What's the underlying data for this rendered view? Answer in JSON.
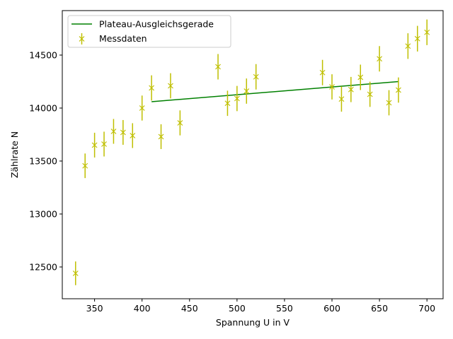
{
  "chart_data": {
    "type": "scatter",
    "title": "",
    "xlabel": "Spannung U in V",
    "ylabel": "Zählrate N",
    "xlim": [
      316,
      717
    ],
    "ylim": [
      12200,
      14920
    ],
    "xticks": [
      350,
      400,
      450,
      500,
      550,
      600,
      650,
      700
    ],
    "yticks": [
      12500,
      13000,
      13500,
      14000,
      14500
    ],
    "grid": false,
    "legend_position": "top-left",
    "colors": {
      "measurements": "#bfbf00",
      "fit": "#008000"
    },
    "series": [
      {
        "name": "Messdaten",
        "kind": "errorbar",
        "marker": "x",
        "x": [
          330,
          340,
          350,
          360,
          370,
          380,
          390,
          400,
          410,
          420,
          430,
          440,
          480,
          490,
          500,
          510,
          520,
          590,
          600,
          610,
          620,
          630,
          640,
          650,
          660,
          670,
          680,
          690,
          700
        ],
        "y": [
          12440,
          13455,
          13650,
          13660,
          13780,
          13770,
          13740,
          14000,
          14190,
          13730,
          14210,
          13860,
          14390,
          14045,
          14090,
          14160,
          14295,
          14335,
          14200,
          14085,
          14175,
          14290,
          14130,
          14465,
          14050,
          14170,
          14585,
          14655,
          14715
        ],
        "yerr": [
          112,
          116,
          117,
          117,
          117,
          117,
          117,
          118,
          119,
          117,
          119,
          118,
          120,
          119,
          119,
          119,
          120,
          120,
          119,
          119,
          119,
          120,
          119,
          120,
          119,
          119,
          121,
          121,
          121
        ]
      },
      {
        "name": "Plateau-Ausgleichsgerade",
        "kind": "line",
        "x": [
          410,
          670
        ],
        "y": [
          14060,
          14250
        ]
      }
    ]
  }
}
